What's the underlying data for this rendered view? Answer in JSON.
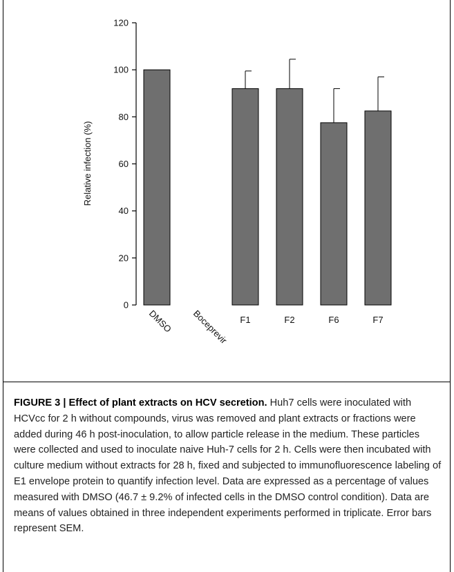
{
  "chart_data": {
    "type": "bar",
    "title": "",
    "xlabel": "",
    "ylabel": "Relative infection (%)",
    "ylim": [
      0,
      120
    ],
    "yticks": [
      0,
      20,
      40,
      60,
      80,
      100,
      120
    ],
    "categories": [
      "DMSO",
      "Boceprevir",
      "F1",
      "F2",
      "F6",
      "F7"
    ],
    "values": [
      100,
      0,
      92,
      92,
      77.5,
      82.5
    ],
    "error_upper": [
      0,
      0,
      7.5,
      12.5,
      14.5,
      14.5
    ],
    "grid": false,
    "bar_color": "#6f6f6f",
    "category_label_rotation": [
      45,
      45,
      0,
      0,
      0,
      0
    ]
  },
  "caption": {
    "label": "FIGURE 3 | Effect of plant extracts on HCV secretion.",
    "text": "Huh7 cells were inoculated with HCVcc for 2 h without compounds, virus was removed and plant extracts or fractions were added during 46 h post-inoculation, to allow particle release in the medium. These particles were collected and used to inoculate naive Huh-7 cells for 2 h. Cells were then incubated with culture medium without extracts for 28 h, fixed and subjected to immunofluorescence labeling of E1 envelope protein to quantify infection level. Data are expressed as a percentage of values measured with DMSO (46.7 ± 9.2% of infected cells in the DMSO control condition). Data are means of values obtained in three independent experiments performed in triplicate. Error bars represent SEM."
  }
}
